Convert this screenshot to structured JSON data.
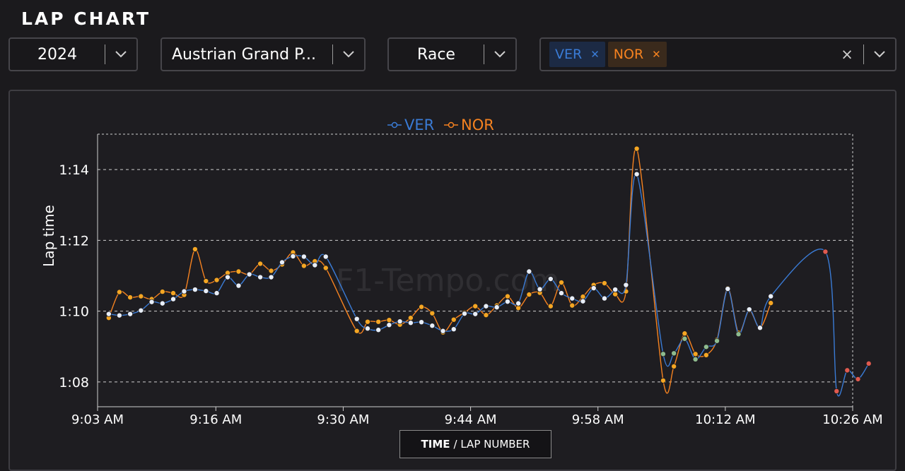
{
  "page_title": "LAP CHART",
  "filters": {
    "year": "2024",
    "event": "Austrian Grand P...",
    "session": "Race",
    "drivers": [
      {
        "code": "VER",
        "color": "#3a7bd5"
      },
      {
        "code": "NOR",
        "color": "#f58220"
      }
    ],
    "clear_symbol": "×"
  },
  "watermark": "F1-Tempo.com",
  "axis_toggle": {
    "active": "TIME",
    "rest": "/ LAP NUMBER"
  },
  "chart_data": {
    "type": "line",
    "ylabel": "Lap time",
    "y_unit": "seconds",
    "ylim": [
      67.3,
      75.0
    ],
    "yticks": [
      68,
      70,
      72,
      74
    ],
    "ytick_labels": [
      "1:08",
      "1:10",
      "1:12",
      "1:14"
    ],
    "xlim": [
      "9:03 AM",
      "10:26 AM"
    ],
    "xticks": [
      "9:03 AM",
      "9:16 AM",
      "9:30 AM",
      "9:44 AM",
      "9:58 AM",
      "10:12 AM",
      "10:26 AM"
    ],
    "grid": true,
    "legend": "top-center",
    "series": [
      {
        "name": "VER",
        "color": "#3a7bd5",
        "points": [
          [
            "9:04:14",
            69.92
          ],
          [
            "9:05:24",
            69.88
          ],
          [
            "9:06:35",
            69.92
          ],
          [
            "9:07:46",
            70.02
          ],
          [
            "9:08:57",
            70.26
          ],
          [
            "9:10:08",
            70.22
          ],
          [
            "9:11:19",
            70.34
          ],
          [
            "9:12:31",
            70.56
          ],
          [
            "9:13:43",
            70.61
          ],
          [
            "9:14:55",
            70.57
          ],
          [
            "9:16:06",
            70.51
          ],
          [
            "9:17:18",
            70.96
          ],
          [
            "9:18:30",
            70.72
          ],
          [
            "9:19:41",
            71.04
          ],
          [
            "9:20:53",
            70.96
          ],
          [
            "9:22:05",
            70.96
          ],
          [
            "9:23:17",
            71.38
          ],
          [
            "9:24:29",
            71.55
          ],
          [
            "9:25:41",
            71.54
          ],
          [
            "9:26:53",
            71.3
          ],
          [
            "9:28:05",
            71.54
          ],
          [
            "9:31:30",
            69.78
          ],
          [
            "9:32:41",
            69.51
          ],
          [
            "9:33:52",
            69.47
          ],
          [
            "9:35:03",
            69.61
          ],
          [
            "9:36:14",
            69.71
          ],
          [
            "9:37:25",
            69.67
          ],
          [
            "9:38:36",
            69.69
          ],
          [
            "9:39:47",
            69.59
          ],
          [
            "9:40:58",
            69.44
          ],
          [
            "9:42:09",
            69.49
          ],
          [
            "9:43:20",
            69.93
          ],
          [
            "9:44:31",
            69.92
          ],
          [
            "9:45:42",
            70.14
          ],
          [
            "9:46:53",
            70.11
          ],
          [
            "9:48:04",
            70.27
          ],
          [
            "9:49:15",
            70.22
          ],
          [
            "9:50:26",
            71.12
          ],
          [
            "9:51:37",
            70.62
          ],
          [
            "9:52:48",
            70.91
          ],
          [
            "9:53:59",
            70.51
          ],
          [
            "9:55:10",
            70.36
          ],
          [
            "9:56:21",
            70.28
          ],
          [
            "9:57:32",
            70.65
          ],
          [
            "9:58:43",
            70.36
          ],
          [
            "9:59:54",
            70.61
          ],
          [
            "10:01:05",
            70.74
          ],
          [
            "10:02:16",
            73.87
          ],
          [
            "10:05:10",
            68.79
          ],
          [
            "10:06:21",
            68.81
          ],
          [
            "10:07:32",
            69.22
          ],
          [
            "10:08:43",
            68.64
          ],
          [
            "10:09:54",
            68.99
          ],
          [
            "10:11:05",
            69.16
          ],
          [
            "10:12:16",
            70.63
          ],
          [
            "10:13:27",
            69.35
          ],
          [
            "10:14:38",
            70.05
          ],
          [
            "10:15:49",
            69.53
          ],
          [
            "10:17:00",
            70.42
          ],
          [
            "10:23:00",
            71.68
          ],
          [
            "10:24:14",
            67.74
          ],
          [
            "10:25:24",
            68.33
          ],
          [
            "10:26:35",
            68.08
          ],
          [
            "10:27:46",
            68.52
          ]
        ]
      },
      {
        "name": "NOR",
        "color": "#f58220",
        "points": [
          [
            "9:04:14",
            69.81
          ],
          [
            "9:05:24",
            70.54
          ],
          [
            "9:06:35",
            70.39
          ],
          [
            "9:07:46",
            70.42
          ],
          [
            "9:08:57",
            70.34
          ],
          [
            "9:10:08",
            70.55
          ],
          [
            "9:11:19",
            70.51
          ],
          [
            "9:12:31",
            70.46
          ],
          [
            "9:13:43",
            71.75
          ],
          [
            "9:14:55",
            70.85
          ],
          [
            "9:16:06",
            70.88
          ],
          [
            "9:17:18",
            71.08
          ],
          [
            "9:18:30",
            71.12
          ],
          [
            "9:19:41",
            71.04
          ],
          [
            "9:20:53",
            71.34
          ],
          [
            "9:22:05",
            71.14
          ],
          [
            "9:23:17",
            71.32
          ],
          [
            "9:24:29",
            71.66
          ],
          [
            "9:25:41",
            71.28
          ],
          [
            "9:26:53",
            71.41
          ],
          [
            "9:28:05",
            71.22
          ],
          [
            "9:31:30",
            69.44
          ],
          [
            "9:32:41",
            69.7
          ],
          [
            "9:33:52",
            69.7
          ],
          [
            "9:35:03",
            69.75
          ],
          [
            "9:36:14",
            69.62
          ],
          [
            "9:37:25",
            69.81
          ],
          [
            "9:38:36",
            70.12
          ],
          [
            "9:39:47",
            69.94
          ],
          [
            "9:40:58",
            69.4
          ],
          [
            "9:42:09",
            69.76
          ],
          [
            "9:43:20",
            69.96
          ],
          [
            "9:44:31",
            70.14
          ],
          [
            "9:45:42",
            69.89
          ],
          [
            "9:46:53",
            70.16
          ],
          [
            "9:48:04",
            70.42
          ],
          [
            "9:49:15",
            70.09
          ],
          [
            "9:50:26",
            70.47
          ],
          [
            "9:51:37",
            70.52
          ],
          [
            "9:52:48",
            70.14
          ],
          [
            "9:53:59",
            70.81
          ],
          [
            "9:55:10",
            70.16
          ],
          [
            "9:56:21",
            70.41
          ],
          [
            "9:57:32",
            70.74
          ],
          [
            "9:58:43",
            70.79
          ],
          [
            "9:59:54",
            70.48
          ],
          [
            "10:01:05",
            70.56
          ],
          [
            "10:02:16",
            74.59
          ],
          [
            "10:05:10",
            68.04
          ],
          [
            "10:06:21",
            68.44
          ],
          [
            "10:07:32",
            69.37
          ],
          [
            "10:08:43",
            68.79
          ],
          [
            "10:09:54",
            68.76
          ],
          [
            "10:11:05",
            69.19
          ],
          [
            "10:12:16",
            70.65
          ],
          [
            "10:13:27",
            69.39
          ],
          [
            "10:14:38",
            70.03
          ],
          [
            "10:15:49",
            69.52
          ],
          [
            "10:17:00",
            70.23
          ]
        ]
      }
    ]
  }
}
